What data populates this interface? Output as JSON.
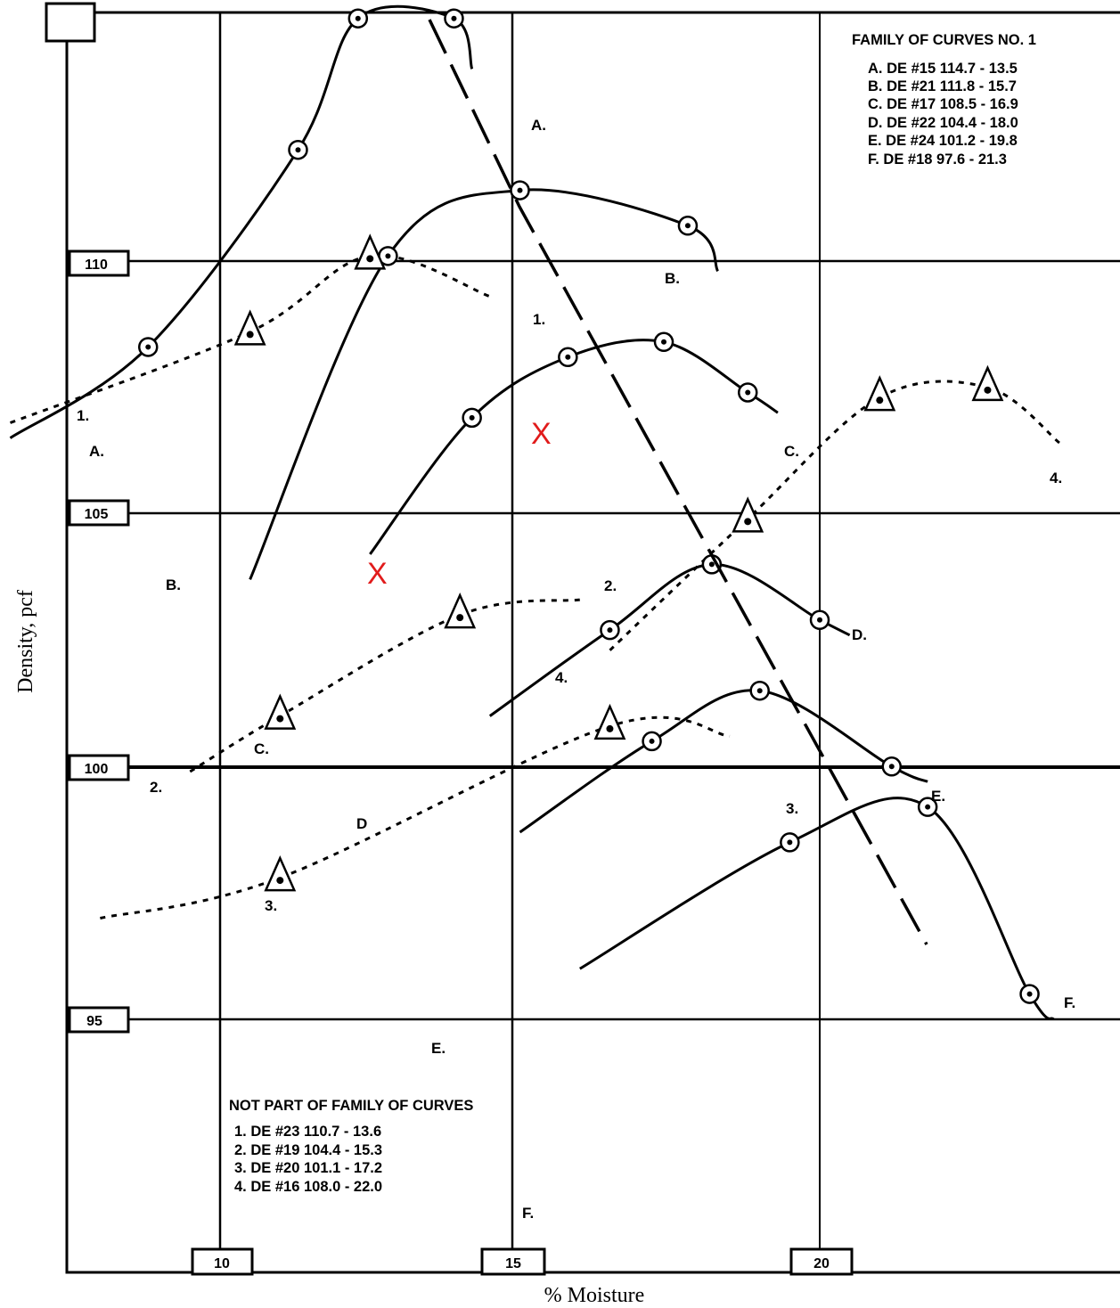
{
  "chart_data": {
    "type": "line",
    "xlabel": "% Moisture",
    "ylabel": "Density, pcf",
    "xlim": [
      5,
      25
    ],
    "ylim": [
      90,
      115
    ],
    "x_ticks": [
      "10",
      "15",
      "20"
    ],
    "y_ticks": [
      "95",
      "100",
      "105",
      "110"
    ],
    "grid": true,
    "series": [
      {
        "name": "A.",
        "style": "solid",
        "marker": "circle",
        "x": [
          6.5,
          8.8,
          11.3,
          12.3,
          13.9,
          14.2
        ],
        "y": [
          106.5,
          108.3,
          112.2,
          114.8,
          114.8,
          113.8
        ]
      },
      {
        "name": "B.",
        "style": "solid",
        "marker": "circle",
        "x": [
          10.5,
          12.8,
          15.0,
          17.8,
          18.3
        ],
        "y": [
          103.7,
          110.1,
          111.4,
          110.7,
          109.8
        ]
      },
      {
        "name": "C.",
        "style": "solid",
        "marker": "circle",
        "x": [
          12.5,
          14.2,
          15.8,
          17.4,
          18.8,
          19.3
        ],
        "y": [
          104.2,
          106.9,
          108.1,
          108.4,
          107.4,
          107.0
        ]
      },
      {
        "name": "D.",
        "style": "solid",
        "marker": "circle",
        "x": [
          14.5,
          16.5,
          18.2,
          20.0,
          20.5
        ],
        "y": [
          101.0,
          102.7,
          104.0,
          102.9,
          102.6
        ]
      },
      {
        "name": "E.",
        "style": "solid",
        "marker": "circle",
        "x": [
          15.0,
          17.2,
          19.0,
          21.2,
          21.8
        ],
        "y": [
          98.7,
          100.5,
          101.5,
          100.0,
          99.7
        ]
      },
      {
        "name": "F.",
        "style": "solid",
        "marker": "circle",
        "x": [
          16.0,
          19.5,
          21.8,
          23.5,
          23.9
        ],
        "y": [
          96.0,
          98.5,
          99.2,
          95.5,
          95.0
        ]
      },
      {
        "name": "1.",
        "style": "dotted",
        "marker": "triangle",
        "x": [
          6.5,
          10.5,
          12.5,
          14.5
        ],
        "y": [
          106.8,
          108.6,
          110.1,
          109.3
        ]
      },
      {
        "name": "2.",
        "style": "dotted",
        "marker": "triangle",
        "x": [
          9.5,
          11.0,
          14.0,
          16.0
        ],
        "y": [
          99.9,
          101.0,
          103.0,
          103.3
        ]
      },
      {
        "name": "3.",
        "style": "dotted",
        "marker": "triangle",
        "x": [
          8.0,
          11.0,
          16.5,
          18.5
        ],
        "y": [
          97.0,
          97.8,
          100.8,
          100.6
        ]
      },
      {
        "name": "4.",
        "style": "dotted",
        "marker": "triangle",
        "x": [
          16.5,
          18.8,
          21.0,
          22.8,
          24.0
        ],
        "y": [
          102.3,
          104.9,
          107.3,
          107.5,
          106.4
        ]
      }
    ],
    "annotations": {
      "top_box": "",
      "legend_family": {
        "title": "FAMILY OF CURVES NO. 1",
        "entries": [
          "A. DE #15 114.7 - 13.5",
          "B. DE #21 111.8 - 15.7",
          "C. DE #17 108.5 - 16.9",
          "D. DE #22 104.4 - 18.0",
          "E. DE #24 101.2 - 19.8",
          "F. DE #18 97.6 - 21.3"
        ]
      },
      "legend_not_family": {
        "title": "NOT PART OF FAMILY OF CURVES",
        "entries": [
          "1. DE #23 110.7 - 13.6",
          "2. DE #19 104.4 - 15.3",
          "3. DE #20 101.1 - 17.2",
          "4. DE #16 108.0 - 22.0"
        ]
      },
      "x_markers": [
        "X",
        "X"
      ]
    }
  }
}
